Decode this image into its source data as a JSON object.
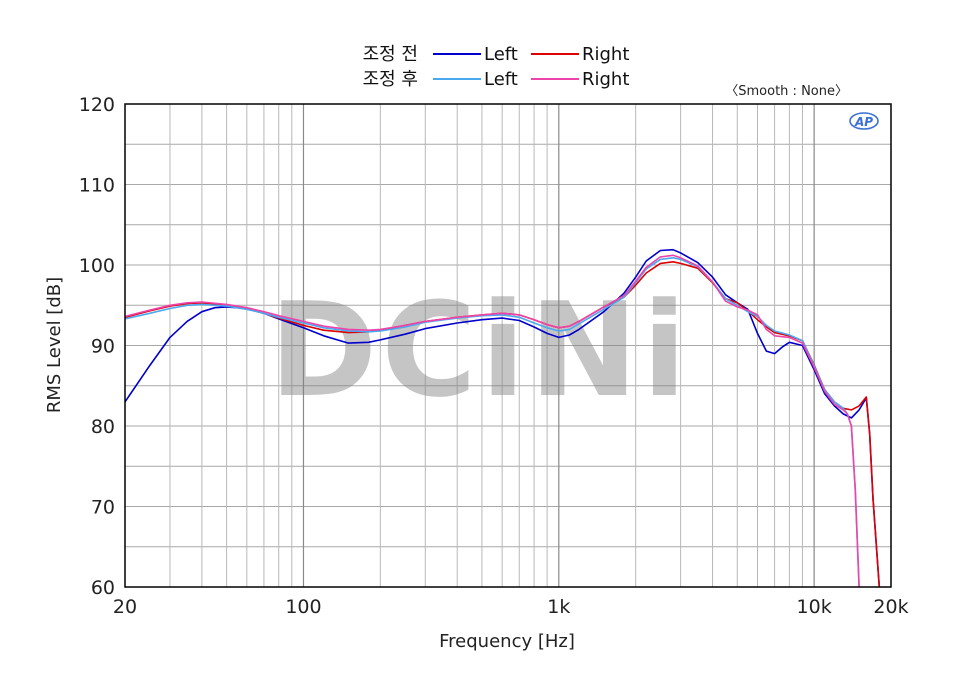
{
  "chart_data": {
    "type": "line",
    "xlabel": "Frequency [Hz]",
    "ylabel": "RMS Level [dB]",
    "smooth_note": "〈Smooth : None〉",
    "xscale": "log",
    "xlim": [
      20,
      20000
    ],
    "ylim": [
      60,
      120
    ],
    "grid": true,
    "legend_position": "top-center",
    "watermark_text": "DCiNi",
    "logo_text": "AP",
    "x_ticks": [
      {
        "value": 20,
        "label": "20"
      },
      {
        "value": 100,
        "label": "100"
      },
      {
        "value": 1000,
        "label": "1k"
      },
      {
        "value": 10000,
        "label": "10k"
      },
      {
        "value": 20000,
        "label": "20k"
      }
    ],
    "y_ticks": [
      60,
      70,
      80,
      90,
      100,
      110,
      120
    ],
    "legend_groups": [
      {
        "group": "조정 전",
        "entries": [
          "Left",
          "Right"
        ]
      },
      {
        "group": "조정 후",
        "entries": [
          "Left",
          "Right"
        ]
      }
    ],
    "series": [
      {
        "group": "조정 전",
        "name": "Left",
        "color": "#0000cc",
        "points": [
          [
            20,
            83
          ],
          [
            25,
            87.5
          ],
          [
            30,
            91
          ],
          [
            35,
            93
          ],
          [
            40,
            94.2
          ],
          [
            45,
            94.7
          ],
          [
            50,
            94.8
          ],
          [
            60,
            94.6
          ],
          [
            70,
            94.0
          ],
          [
            80,
            93.3
          ],
          [
            100,
            92.2
          ],
          [
            120,
            91.2
          ],
          [
            150,
            90.3
          ],
          [
            180,
            90.4
          ],
          [
            200,
            90.7
          ],
          [
            250,
            91.4
          ],
          [
            300,
            92.1
          ],
          [
            400,
            92.8
          ],
          [
            500,
            93.2
          ],
          [
            600,
            93.4
          ],
          [
            700,
            93.1
          ],
          [
            800,
            92.3
          ],
          [
            900,
            91.5
          ],
          [
            1000,
            91.0
          ],
          [
            1100,
            91.3
          ],
          [
            1200,
            92.0
          ],
          [
            1500,
            94.2
          ],
          [
            1800,
            96.5
          ],
          [
            2000,
            98.5
          ],
          [
            2200,
            100.5
          ],
          [
            2500,
            101.8
          ],
          [
            2800,
            101.9
          ],
          [
            3000,
            101.5
          ],
          [
            3500,
            100.3
          ],
          [
            4000,
            98.5
          ],
          [
            4500,
            96.3
          ],
          [
            5000,
            95.3
          ],
          [
            5500,
            94.5
          ],
          [
            6000,
            91.5
          ],
          [
            6500,
            89.3
          ],
          [
            7000,
            89.0
          ],
          [
            7500,
            89.8
          ],
          [
            8000,
            90.4
          ],
          [
            9000,
            90.0
          ],
          [
            10000,
            87.0
          ],
          [
            11000,
            84.0
          ],
          [
            12000,
            82.5
          ],
          [
            13000,
            81.5
          ],
          [
            14000,
            81.0
          ],
          [
            15000,
            82.0
          ],
          [
            16000,
            83.5
          ],
          [
            16500,
            79
          ],
          [
            17000,
            71
          ],
          [
            18000,
            60
          ]
        ]
      },
      {
        "group": "조정 전",
        "name": "Right",
        "color": "#dd0000",
        "points": [
          [
            20,
            93.5
          ],
          [
            25,
            94.3
          ],
          [
            30,
            94.9
          ],
          [
            35,
            95.2
          ],
          [
            40,
            95.3
          ],
          [
            50,
            95.0
          ],
          [
            60,
            94.6
          ],
          [
            70,
            94.0
          ],
          [
            80,
            93.4
          ],
          [
            100,
            92.5
          ],
          [
            120,
            91.9
          ],
          [
            150,
            91.6
          ],
          [
            180,
            91.7
          ],
          [
            200,
            91.9
          ],
          [
            250,
            92.5
          ],
          [
            300,
            93.0
          ],
          [
            400,
            93.5
          ],
          [
            500,
            93.8
          ],
          [
            600,
            94.0
          ],
          [
            700,
            93.8
          ],
          [
            800,
            93.2
          ],
          [
            900,
            92.6
          ],
          [
            1000,
            92.2
          ],
          [
            1100,
            92.4
          ],
          [
            1200,
            93.0
          ],
          [
            1500,
            94.8
          ],
          [
            1800,
            96.0
          ],
          [
            2000,
            97.5
          ],
          [
            2200,
            99.0
          ],
          [
            2500,
            100.2
          ],
          [
            2800,
            100.4
          ],
          [
            3000,
            100.2
          ],
          [
            3500,
            99.6
          ],
          [
            4000,
            97.8
          ],
          [
            4500,
            95.8
          ],
          [
            5000,
            95.3
          ],
          [
            5500,
            94.3
          ],
          [
            6000,
            93.2
          ],
          [
            6500,
            92.3
          ],
          [
            7000,
            91.6
          ],
          [
            8000,
            91.2
          ],
          [
            9000,
            90.6
          ],
          [
            10000,
            87.6
          ],
          [
            11000,
            84.5
          ],
          [
            12000,
            83.0
          ],
          [
            13000,
            82.2
          ],
          [
            14000,
            82.0
          ],
          [
            15000,
            82.5
          ],
          [
            16000,
            83.6
          ],
          [
            16500,
            79
          ],
          [
            17000,
            71
          ],
          [
            18000,
            60
          ]
        ]
      },
      {
        "group": "조정 후",
        "name": "Left",
        "color": "#4aa8f0",
        "points": [
          [
            20,
            93.3
          ],
          [
            25,
            94.0
          ],
          [
            30,
            94.6
          ],
          [
            35,
            95.0
          ],
          [
            40,
            95.1
          ],
          [
            50,
            94.9
          ],
          [
            60,
            94.5
          ],
          [
            70,
            94.0
          ],
          [
            80,
            93.5
          ],
          [
            100,
            92.8
          ],
          [
            120,
            92.2
          ],
          [
            150,
            91.8
          ],
          [
            180,
            91.7
          ],
          [
            200,
            91.8
          ],
          [
            250,
            92.3
          ],
          [
            300,
            92.9
          ],
          [
            400,
            93.4
          ],
          [
            500,
            93.7
          ],
          [
            600,
            93.8
          ],
          [
            700,
            93.5
          ],
          [
            800,
            92.8
          ],
          [
            900,
            92.2
          ],
          [
            1000,
            91.8
          ],
          [
            1100,
            92.0
          ],
          [
            1200,
            92.7
          ],
          [
            1500,
            94.5
          ],
          [
            1800,
            96.0
          ],
          [
            2000,
            97.8
          ],
          [
            2200,
            99.5
          ],
          [
            2500,
            100.7
          ],
          [
            2800,
            100.9
          ],
          [
            3000,
            100.7
          ],
          [
            3500,
            99.8
          ],
          [
            4000,
            97.9
          ],
          [
            4500,
            95.8
          ],
          [
            5000,
            95.0
          ],
          [
            5500,
            94.2
          ],
          [
            6000,
            93.6
          ],
          [
            6500,
            92.5
          ],
          [
            7000,
            91.8
          ],
          [
            8000,
            91.3
          ],
          [
            9000,
            90.6
          ],
          [
            10000,
            87.5
          ],
          [
            11000,
            84.5
          ],
          [
            12000,
            83.0
          ],
          [
            13000,
            82.2
          ],
          [
            13500,
            81.5
          ],
          [
            14000,
            80
          ],
          [
            14500,
            72
          ],
          [
            15000,
            60
          ]
        ]
      },
      {
        "group": "조정 후",
        "name": "Right",
        "color": "#ee44aa",
        "points": [
          [
            20,
            93.6
          ],
          [
            25,
            94.4
          ],
          [
            30,
            95.0
          ],
          [
            35,
            95.3
          ],
          [
            40,
            95.4
          ],
          [
            50,
            95.1
          ],
          [
            60,
            94.7
          ],
          [
            70,
            94.2
          ],
          [
            80,
            93.7
          ],
          [
            100,
            93.0
          ],
          [
            120,
            92.4
          ],
          [
            150,
            92.0
          ],
          [
            180,
            91.9
          ],
          [
            200,
            92.0
          ],
          [
            250,
            92.5
          ],
          [
            300,
            93.0
          ],
          [
            400,
            93.5
          ],
          [
            500,
            93.8
          ],
          [
            600,
            94.0
          ],
          [
            700,
            93.8
          ],
          [
            800,
            93.2
          ],
          [
            900,
            92.6
          ],
          [
            1000,
            92.2
          ],
          [
            1100,
            92.4
          ],
          [
            1200,
            93.0
          ],
          [
            1500,
            94.8
          ],
          [
            1800,
            96.2
          ],
          [
            2000,
            98.0
          ],
          [
            2200,
            99.7
          ],
          [
            2500,
            101.0
          ],
          [
            2800,
            101.2
          ],
          [
            3000,
            100.9
          ],
          [
            3500,
            99.9
          ],
          [
            4000,
            97.9
          ],
          [
            4500,
            95.5
          ],
          [
            5000,
            94.8
          ],
          [
            5500,
            94.4
          ],
          [
            6000,
            93.8
          ],
          [
            6500,
            92.0
          ],
          [
            7000,
            91.2
          ],
          [
            8000,
            91.0
          ],
          [
            9000,
            90.3
          ],
          [
            10000,
            87.3
          ],
          [
            11000,
            84.3
          ],
          [
            12000,
            82.7
          ],
          [
            13000,
            82.0
          ],
          [
            13500,
            81.5
          ],
          [
            14000,
            80
          ],
          [
            14500,
            72
          ],
          [
            15000,
            60
          ]
        ]
      }
    ]
  }
}
